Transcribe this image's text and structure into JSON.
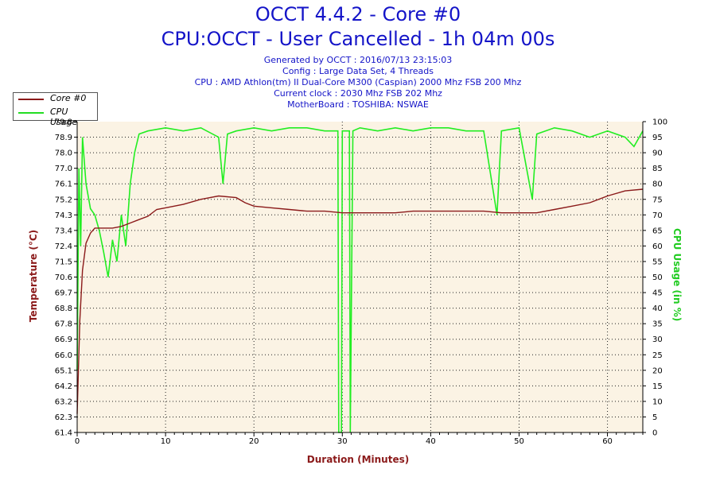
{
  "title": "OCCT 4.4.2 - Core #0",
  "subtitle": "CPU:OCCT - User Cancelled - 1h 04m 00s",
  "info_lines": [
    "Generated by OCCT : 2016/07/13 23:15:03",
    "Config : Large Data Set, 4 Threads",
    "CPU : AMD Athlon(tm) II Dual-Core M300 (Caspian) 2000 Mhz FSB 200 Mhz",
    "Current clock : 2030 Mhz FSB 202 Mhz",
    "MotherBoard : TOSHIBA: NSWAE"
  ],
  "legend": [
    {
      "label": "Core #0",
      "color": "#8b1a1a"
    },
    {
      "label": "CPU Usage",
      "color": "#22dd22"
    }
  ],
  "colors": {
    "temp": "#8b1a1a",
    "usage": "#22ee22",
    "plot_bg": "#fbf3e4",
    "grid": "#222222",
    "title": "#1414c8"
  },
  "chart_data": {
    "type": "line",
    "xlabel": "Duration (Minutes)",
    "ylabel_left": "Temperature (°C)",
    "ylabel_right": "CPU Usage (in %)",
    "xlim": [
      0,
      64
    ],
    "ylim_left": [
      61.4,
      79.8
    ],
    "ylim_right": [
      0,
      100
    ],
    "x_ticks": [
      "0",
      "10",
      "20",
      "30",
      "40",
      "50",
      "60"
    ],
    "y_left_ticks": [
      "61.4",
      "62.3",
      "63.2",
      "64.2",
      "65.1",
      "66.0",
      "66.9",
      "67.8",
      "68.8",
      "69.7",
      "70.6",
      "71.5",
      "72.4",
      "73.4",
      "74.3",
      "75.2",
      "76.1",
      "77.0",
      "78.0",
      "78.9",
      "79.8"
    ],
    "y_right_ticks": [
      "0",
      "5",
      "10",
      "15",
      "20",
      "25",
      "30",
      "35",
      "40",
      "45",
      "50",
      "55",
      "60",
      "65",
      "70",
      "75",
      "80",
      "85",
      "90",
      "95",
      "100"
    ],
    "grid": true,
    "legend_position": "top-left",
    "series": [
      {
        "name": "Core #0",
        "axis": "left",
        "x": [
          0,
          0.3,
          0.6,
          1,
          1.5,
          2,
          3,
          4,
          5,
          6,
          7,
          8,
          9,
          10,
          12,
          14,
          16,
          18,
          19,
          20,
          22,
          24,
          26,
          28,
          30,
          32,
          34,
          36,
          38,
          40,
          42,
          44,
          46,
          48,
          50,
          52,
          54,
          56,
          58,
          60,
          62,
          64
        ],
        "values": [
          62.5,
          68.0,
          71.0,
          72.6,
          73.2,
          73.5,
          73.5,
          73.5,
          73.6,
          73.8,
          74.0,
          74.2,
          74.6,
          74.7,
          74.9,
          75.2,
          75.4,
          75.3,
          75.0,
          74.8,
          74.7,
          74.6,
          74.5,
          74.5,
          74.4,
          74.4,
          74.4,
          74.4,
          74.5,
          74.5,
          74.5,
          74.5,
          74.5,
          74.4,
          74.4,
          74.4,
          74.6,
          74.8,
          75.0,
          75.4,
          75.7,
          75.8
        ]
      },
      {
        "name": "CPU Usage",
        "axis": "right",
        "x": [
          0,
          0.2,
          0.4,
          0.6,
          1,
          1.5,
          2,
          2.5,
          3,
          3.5,
          4,
          4.5,
          5,
          5.5,
          6,
          6.5,
          7,
          8,
          10,
          12,
          14,
          16,
          16.5,
          17,
          18,
          20,
          22,
          24,
          26,
          28,
          29.5,
          29.6,
          29.9,
          30,
          30.8,
          30.9,
          31.2,
          32,
          34,
          36,
          38,
          40,
          42,
          44,
          46,
          47.5,
          48,
          50,
          51.5,
          52,
          54,
          56,
          58,
          60,
          62,
          63,
          64
        ],
        "values": [
          20,
          85,
          60,
          95,
          80,
          72,
          70,
          65,
          58,
          50,
          62,
          55,
          70,
          60,
          80,
          90,
          96,
          97,
          98,
          97,
          98,
          95,
          80,
          96,
          97,
          98,
          97,
          98,
          98,
          97,
          97,
          0,
          0,
          97,
          97,
          0,
          97,
          98,
          97,
          98,
          97,
          98,
          98,
          97,
          97,
          70,
          97,
          98,
          75,
          96,
          98,
          97,
          95,
          97,
          95,
          92,
          97
        ]
      }
    ]
  }
}
